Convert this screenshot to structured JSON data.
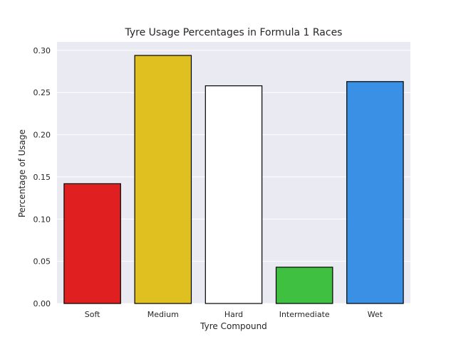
{
  "chart_data": {
    "type": "bar",
    "title": "Tyre Usage Percentages in Formula 1 Races",
    "xlabel": "Tyre Compound",
    "ylabel": "Percentage of Usage",
    "categories": [
      "Soft",
      "Medium",
      "Hard",
      "Intermediate",
      "Wet"
    ],
    "values": [
      0.142,
      0.294,
      0.258,
      0.043,
      0.263
    ],
    "colors": [
      "#e02020",
      "#e0c020",
      "#ffffff",
      "#40c040",
      "#3a90e4"
    ],
    "edge_color": "#000000",
    "ylim": [
      0,
      0.31
    ],
    "yticks": [
      0.0,
      0.05,
      0.1,
      0.15,
      0.2,
      0.25,
      0.3
    ],
    "ytick_labels": [
      "0.00",
      "0.05",
      "0.10",
      "0.15",
      "0.20",
      "0.25",
      "0.30"
    ],
    "grid": true,
    "background": "#eaeaf2",
    "grid_color": "#ffffff"
  }
}
